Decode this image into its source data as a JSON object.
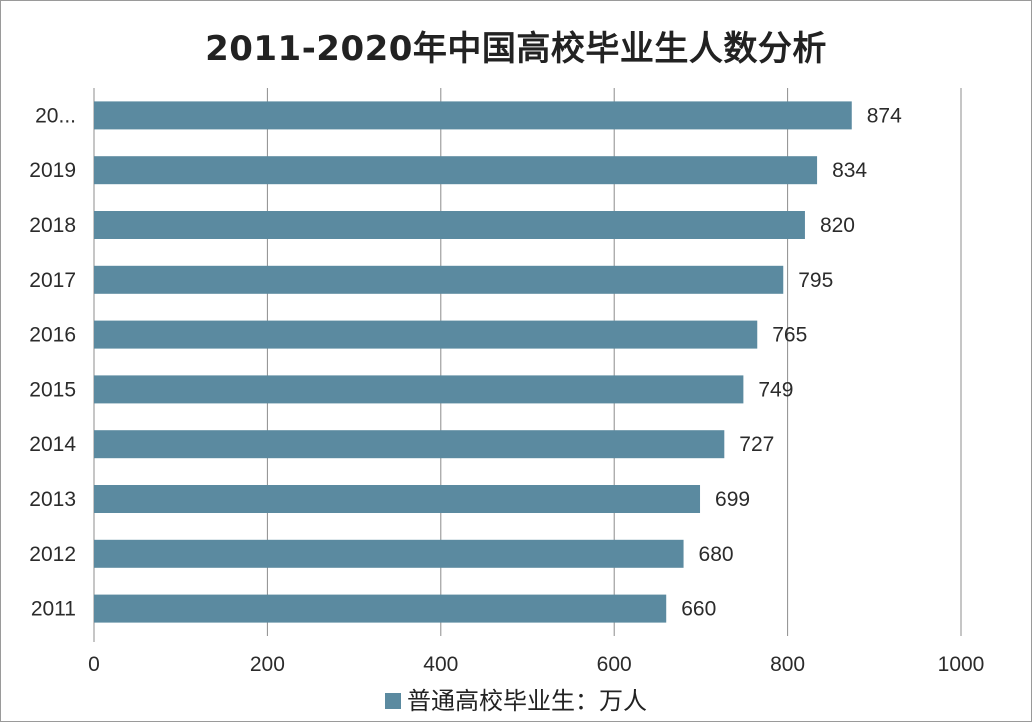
{
  "chart_data": {
    "type": "bar",
    "orientation": "horizontal",
    "title": "2011-2020年中国高校毕业生人数分析",
    "categories": [
      "2011",
      "2012",
      "2013",
      "2014",
      "2015",
      "2016",
      "2017",
      "2018",
      "2019",
      "20..."
    ],
    "series": [
      {
        "name": "普通高校毕业生：万人",
        "values": [
          660,
          680,
          699,
          727,
          749,
          765,
          795,
          820,
          834,
          874
        ],
        "color": "#5b8aa0"
      }
    ],
    "xlim": [
      0,
      1000
    ],
    "x_ticks": [
      "0",
      "200",
      "400",
      "600",
      "800",
      "1000"
    ],
    "grid": true,
    "legend_position": "bottom"
  }
}
